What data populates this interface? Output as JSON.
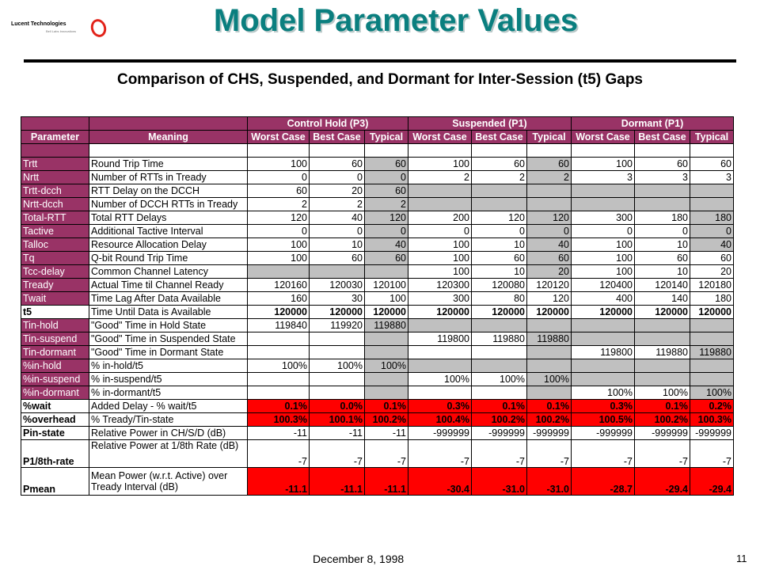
{
  "logo": {
    "name": "Lucent Technologies",
    "tagline": "Bell Labs Innovations"
  },
  "title": "Model Parameter Values",
  "subtitle": "Comparison of CHS, Suspended, and Dormant for Inter-Session (t5) Gaps",
  "table": {
    "header_param": "Parameter",
    "header_meaning": "Meaning",
    "groups": [
      "Control Hold (P3)",
      "Suspended (P1)",
      "Dormant (P1)"
    ],
    "subheaders": [
      "Worst Case",
      "Best Case",
      "Typical",
      "Worst Case",
      "Best Case",
      "Typical",
      "Worst Case",
      "Best Case",
      "Typical"
    ],
    "rows": [
      {
        "param": "Trtt",
        "meaning": "Round Trip Time",
        "values": [
          "100",
          "60",
          "60",
          "100",
          "60",
          "60",
          "100",
          "60",
          "60"
        ]
      },
      {
        "param": "Nrtt",
        "meaning": "Number of RTTs in Tready",
        "values": [
          "0",
          "0",
          "0",
          "2",
          "2",
          "2",
          "3",
          "3",
          "3"
        ]
      },
      {
        "param": "Trtt-dcch",
        "meaning": "RTT Delay on the DCCH",
        "values": [
          "60",
          "20",
          "60",
          "",
          "",
          "",
          "",
          "",
          ""
        ]
      },
      {
        "param": "Nrtt-dcch",
        "meaning": "Number of DCCH RTTs in Tready",
        "values": [
          "2",
          "2",
          "2",
          "",
          "",
          "",
          "",
          "",
          ""
        ]
      },
      {
        "param": "Total-RTT",
        "meaning": "Total RTT Delays",
        "values": [
          "120",
          "40",
          "120",
          "200",
          "120",
          "120",
          "300",
          "180",
          "180"
        ]
      },
      {
        "param": "Tactive",
        "meaning": "Additional Tactive Interval",
        "values": [
          "0",
          "0",
          "0",
          "0",
          "0",
          "0",
          "0",
          "0",
          "0"
        ]
      },
      {
        "param": "Talloc",
        "meaning": "Resource Allocation Delay",
        "values": [
          "100",
          "10",
          "40",
          "100",
          "10",
          "40",
          "100",
          "10",
          "40"
        ]
      },
      {
        "param": "Tq",
        "meaning": "Q-bit Round Trip Time",
        "values": [
          "100",
          "60",
          "60",
          "100",
          "60",
          "60",
          "100",
          "60",
          "60"
        ]
      },
      {
        "param": "Tcc-delay",
        "meaning": "Common Channel Latency",
        "values": [
          "",
          "",
          "",
          "100",
          "10",
          "20",
          "100",
          "10",
          "20"
        ]
      },
      {
        "param": "Tready",
        "meaning": "Actual Time til Channel Ready",
        "values": [
          "120160",
          "120030",
          "120100",
          "120300",
          "120080",
          "120120",
          "120400",
          "120140",
          "120180"
        ]
      },
      {
        "param": "Twait",
        "meaning": "Time Lag After Data Available",
        "values": [
          "160",
          "30",
          "100",
          "300",
          "80",
          "120",
          "400",
          "140",
          "180"
        ]
      },
      {
        "param": "t5",
        "meaning": "Time Until Data is Available",
        "values": [
          "120000",
          "120000",
          "120000",
          "120000",
          "120000",
          "120000",
          "120000",
          "120000",
          "120000"
        ]
      },
      {
        "param": "Tin-hold",
        "meaning": "\"Good\" Time in Hold State",
        "values": [
          "119840",
          "119920",
          "119880",
          "",
          "",
          "",
          "",
          "",
          ""
        ]
      },
      {
        "param": "Tin-suspend",
        "meaning": "\"Good\" Time in Suspended State",
        "values": [
          "",
          "",
          "",
          "119800",
          "119880",
          "119880",
          "",
          "",
          ""
        ]
      },
      {
        "param": "Tin-dormant",
        "meaning": "\"Good\" Time in Dormant State",
        "values": [
          "",
          "",
          "",
          "",
          "",
          "",
          "119800",
          "119880",
          "119880"
        ]
      },
      {
        "param": "%in-hold",
        "meaning": "% in-hold/t5",
        "values": [
          "100%",
          "100%",
          "100%",
          "",
          "",
          "",
          "",
          "",
          ""
        ]
      },
      {
        "param": "%in-suspend",
        "meaning": "% in-suspend/t5",
        "values": [
          "",
          "",
          "",
          "100%",
          "100%",
          "100%",
          "",
          "",
          ""
        ]
      },
      {
        "param": "%in-dormant",
        "meaning": "% in-dormant/t5",
        "values": [
          "",
          "",
          "",
          "",
          "",
          "",
          "100%",
          "100%",
          "100%"
        ]
      },
      {
        "param": "%wait",
        "meaning": "Added Delay - % wait/t5",
        "values": [
          "0.1%",
          "0.0%",
          "0.1%",
          "0.3%",
          "0.1%",
          "0.1%",
          "0.3%",
          "0.1%",
          "0.2%"
        ]
      },
      {
        "param": "%overhead",
        "meaning": "% Tready/Tin-state",
        "values": [
          "100.3%",
          "100.1%",
          "100.2%",
          "100.4%",
          "100.2%",
          "100.2%",
          "100.5%",
          "100.2%",
          "100.3%"
        ]
      },
      {
        "param": "Pin-state",
        "meaning": "Relative Power in CH/S/D (dB)",
        "values": [
          "-11",
          "-11",
          "-11",
          "-999999",
          "-999999",
          "-999999",
          "-999999",
          "-999999",
          "-999999"
        ]
      },
      {
        "param": "P1/8th-rate",
        "meaning": "Relative Power at 1/8th Rate (dB)",
        "values": [
          "-7",
          "-7",
          "-7",
          "-7",
          "-7",
          "-7",
          "-7",
          "-7",
          "-7"
        ]
      },
      {
        "param": "Pmean",
        "meaning_line1": "Mean Power (w.r.t. Active) over",
        "meaning_line2": "Tready Interval (dB)",
        "values": [
          "-11.1",
          "-11.1",
          "-11.1",
          "-30.4",
          "-31.0",
          "-31.0",
          "-28.7",
          "-29.4",
          "-29.4"
        ]
      }
    ]
  },
  "footer": {
    "date": "December 8, 1998",
    "page": "11"
  },
  "colors": {
    "title": "#0a7f7f",
    "param_bg": "#993366",
    "highlight": "#ff0000",
    "grey": "#c0c0c0"
  }
}
